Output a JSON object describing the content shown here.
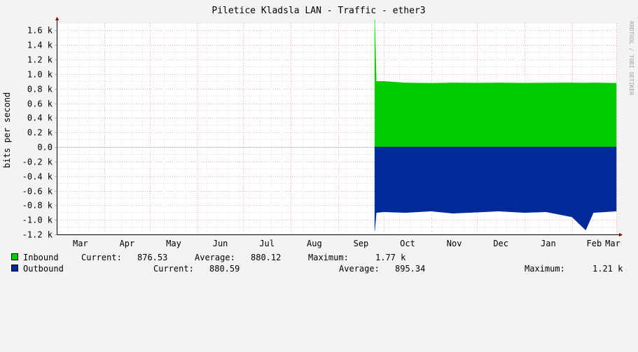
{
  "chart_data": {
    "type": "area",
    "title": "Piletice Kladsla LAN - Traffic - ether3",
    "ylabel": "bits per second",
    "watermark": "RRDTOOL / TOBI OETIKER",
    "ylim": [
      -1200,
      1700
    ],
    "yticks": [
      "1.6 k",
      "1.4 k",
      "1.2 k",
      "1.0 k",
      "0.8 k",
      "0.6 k",
      "0.4 k",
      "0.2 k",
      "0.0",
      "-0.2 k",
      "-0.4 k",
      "-0.6 k",
      "-0.8 k",
      "-1.0 k",
      "-1.2 k"
    ],
    "ytick_values": [
      1600,
      1400,
      1200,
      1000,
      800,
      600,
      400,
      200,
      0,
      -200,
      -400,
      -600,
      -800,
      -1000,
      -1200
    ],
    "xticks": [
      "Mar",
      "Apr",
      "May",
      "Jun",
      "Jul",
      "Aug",
      "Sep",
      "Oct",
      "Nov",
      "Dec",
      "Jan",
      "Feb",
      "Mar"
    ],
    "x": [
      "2023-03-01",
      "2023-04-01",
      "2023-05-01",
      "2023-06-01",
      "2023-07-01",
      "2023-08-01",
      "2023-09-01",
      "2023-09-24",
      "2023-09-25",
      "2023-09-26",
      "2023-10-01",
      "2023-10-15",
      "2023-11-01",
      "2023-11-15",
      "2023-12-01",
      "2023-12-15",
      "2024-01-01",
      "2024-01-15",
      "2024-02-01",
      "2024-02-10",
      "2024-02-15",
      "2024-03-01"
    ],
    "series": [
      {
        "name": "Inbound",
        "color": "#00cc00",
        "values": [
          null,
          null,
          null,
          null,
          null,
          null,
          null,
          null,
          1750,
          900,
          900,
          880,
          875,
          880,
          878,
          880,
          877,
          879,
          880,
          878,
          880,
          876.53
        ]
      },
      {
        "name": "Outbound",
        "color": "#002a97",
        "values": [
          null,
          null,
          null,
          null,
          null,
          null,
          null,
          null,
          -1150,
          -900,
          -890,
          -900,
          -880,
          -910,
          -895,
          -880,
          -900,
          -890,
          -960,
          -1140,
          -900,
          -880.59
        ]
      }
    ],
    "legend": [
      {
        "name": "Inbound",
        "color": "#00cc00",
        "current_label": "Current:",
        "current": "876.53",
        "average_label": "Average:",
        "average": "880.12",
        "maximum_label": "Maximum:",
        "maximum": "1.77 k"
      },
      {
        "name": "Outbound",
        "color": "#002a97",
        "current_label": "Current:",
        "current": "880.59",
        "average_label": "Average:",
        "average": "895.34",
        "maximum_label": "Maximum:",
        "maximum": "1.21 k"
      }
    ],
    "grid": true,
    "background": "#f3f3f3",
    "plot_background": "#ffffff"
  }
}
